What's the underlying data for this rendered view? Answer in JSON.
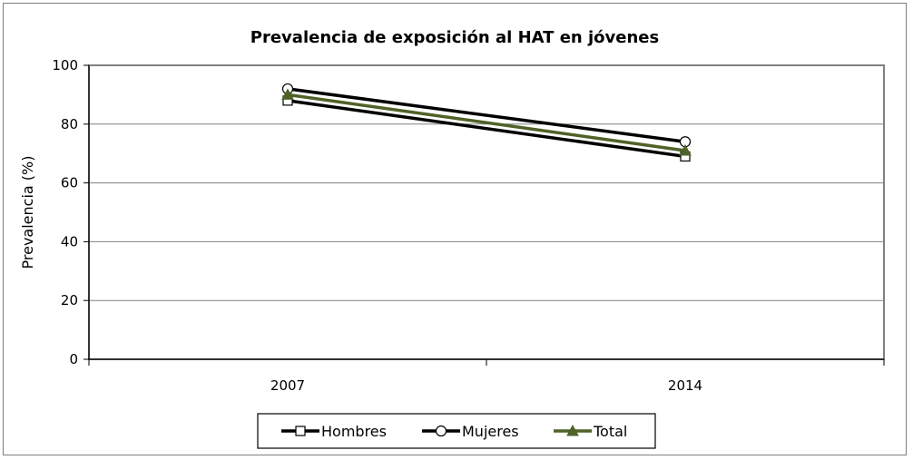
{
  "chart_data": {
    "type": "line",
    "title": "Prevalencia de exposición al HAT en jóvenes",
    "xlabel": "",
    "ylabel": "Prevalencia (%)",
    "categories": [
      "2007",
      "2014"
    ],
    "ylim": [
      0,
      100
    ],
    "yticks": [
      0,
      20,
      40,
      60,
      80,
      100
    ],
    "grid": true,
    "legend_position": "bottom",
    "series": [
      {
        "name": "Hombres",
        "values": [
          88,
          69
        ],
        "color": "#000000",
        "marker": "square"
      },
      {
        "name": "Mujeres",
        "values": [
          92,
          74
        ],
        "color": "#000000",
        "marker": "circle"
      },
      {
        "name": "Total",
        "values": [
          90,
          71
        ],
        "color": "#4f6228",
        "marker": "triangle"
      }
    ]
  }
}
